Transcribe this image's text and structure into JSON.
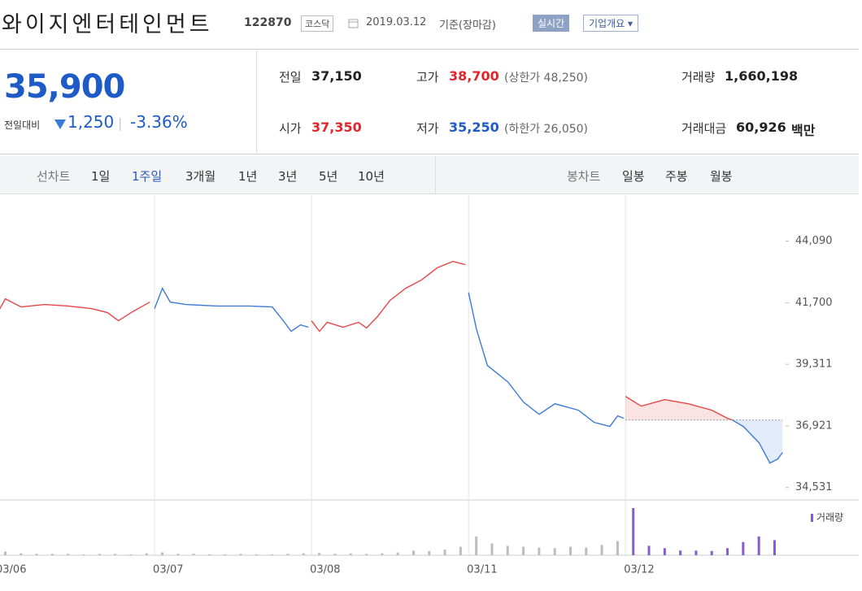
{
  "header": {
    "name": "와이지엔터테인먼트",
    "code": "122870",
    "market": "코스닥",
    "date": "2019.03.12",
    "basis": "기준(장마감)",
    "realtime": "실시간",
    "company": "기업개요"
  },
  "quote": {
    "price": "35,900",
    "change_label": "전일대비",
    "change": "1,250",
    "change_pct": "-3.36%",
    "items": [
      {
        "label": "전일",
        "value": "37,150",
        "color": "#222222"
      },
      {
        "label": "고가",
        "value": "38,700",
        "note": "(상한가 48,250)",
        "color": "#e0262b"
      },
      {
        "label": "거래량",
        "value": "1,660,198",
        "color": "#222222"
      },
      {
        "label": "시가",
        "value": "37,350",
        "color": "#e0262b"
      },
      {
        "label": "저가",
        "value": "35,250",
        "note": "(하한가 26,050)",
        "color": "#1f5bc6"
      },
      {
        "label": "거래대금",
        "value": "60,926",
        "unit": "백만",
        "color": "#222222"
      }
    ]
  },
  "tabs": {
    "line_label": "선차트",
    "line": [
      "1일",
      "1주일",
      "3개월",
      "1년",
      "3년",
      "5년",
      "10년"
    ],
    "active": 1,
    "candle_label": "봉차트",
    "candle": [
      "일봉",
      "주봉",
      "월봉"
    ]
  },
  "chart_data": {
    "type": "line",
    "xlim": [
      0,
      5.04
    ],
    "ylim": [
      34050,
      45400
    ],
    "xticks": [
      {
        "value": 0,
        "label": "03/06"
      },
      {
        "value": 1,
        "label": "03/07"
      },
      {
        "value": 2,
        "label": "03/08"
      },
      {
        "value": 3,
        "label": "03/11"
      },
      {
        "value": 4,
        "label": "03/12"
      }
    ],
    "yticks": [
      {
        "value": 44090,
        "label": "44,090"
      },
      {
        "value": 41700,
        "label": "41,700"
      },
      {
        "value": 39311,
        "label": "39,311"
      },
      {
        "value": 36921,
        "label": "36,921"
      },
      {
        "value": 34531,
        "label": "34,531"
      }
    ],
    "xgrid": true,
    "reference": 37150,
    "series": [
      {
        "color": "#e64545",
        "x": [
          0,
          0.05,
          0.15,
          0.3,
          0.45,
          0.6,
          0.7,
          0.77,
          0.85,
          0.97
        ],
        "values": [
          41315,
          41850,
          41535,
          41630,
          41570,
          41470,
          41315,
          41000,
          41315,
          41725
        ]
      },
      {
        "color": "#3d7ad6",
        "x": [
          1,
          1.05,
          1.1,
          1.2,
          1.4,
          1.6,
          1.75,
          1.82,
          1.87,
          1.93,
          1.98
        ],
        "values": [
          41470,
          42260,
          41725,
          41630,
          41570,
          41570,
          41535,
          41000,
          40590,
          40840,
          40750
        ]
      },
      {
        "color": "#e64545",
        "x": [
          2,
          2.05,
          2.1,
          2.2,
          2.3,
          2.35,
          2.42,
          2.5,
          2.6,
          2.7,
          2.8,
          2.9,
          2.98
        ],
        "values": [
          41000,
          40590,
          40940,
          40750,
          40940,
          40720,
          41160,
          41790,
          42260,
          42580,
          43050,
          43300,
          43175
        ]
      },
      {
        "color": "#3d7ad6",
        "x": [
          3,
          3.05,
          3.12,
          3.25,
          3.35,
          3.45,
          3.55,
          3.7,
          3.8,
          3.9,
          3.95,
          3.99
        ],
        "values": [
          42100,
          40685,
          39265,
          38630,
          37845,
          37370,
          37780,
          37530,
          37060,
          36900,
          37310,
          37215
        ]
      },
      {
        "color": "#e64545",
        "fill": true,
        "x": [
          4,
          4.1,
          4.25,
          4.4,
          4.55,
          4.65,
          4.68
        ],
        "values": [
          38065,
          37690,
          37940,
          37780,
          37530,
          37215,
          37150
        ]
      },
      {
        "color": "#3d7ad6",
        "fill": true,
        "x": [
          4.68,
          4.75,
          4.85,
          4.92,
          4.97,
          5
        ],
        "values": [
          37150,
          36900,
          36270,
          35480,
          35640,
          35890
        ]
      }
    ],
    "volume": {
      "ylim": [
        0,
        100
      ],
      "series": [
        {
          "color": "#bdbdbd",
          "x": [
            0,
            0.1,
            0.2,
            0.3,
            0.4,
            0.5,
            0.6,
            0.7,
            0.8,
            0.9,
            1,
            1.1,
            1.2,
            1.3,
            1.4,
            1.5,
            1.6,
            1.7,
            1.8,
            1.9,
            2,
            2.1,
            2.2,
            2.3,
            2.4,
            2.5,
            2.6,
            2.7,
            2.8,
            2.9,
            3,
            3.1,
            3.2,
            3.3,
            3.4,
            3.5,
            3.6,
            3.7,
            3.8,
            3.9
          ],
          "values": [
            8,
            4,
            3,
            3,
            3,
            2,
            3,
            3,
            2,
            4,
            6,
            3,
            3,
            2,
            2,
            3,
            2,
            2,
            3,
            4,
            5,
            3,
            4,
            3,
            4,
            6,
            10,
            9,
            12,
            18,
            40,
            25,
            20,
            18,
            16,
            15,
            18,
            16,
            22,
            30
          ]
        },
        {
          "name": "거래량",
          "color": "#8a5cc8",
          "x": [
            4,
            4.1,
            4.2,
            4.3,
            4.4,
            4.5,
            4.6,
            4.7,
            4.8,
            4.9
          ],
          "values": [
            100,
            20,
            15,
            10,
            10,
            9,
            15,
            28,
            40,
            32
          ]
        }
      ]
    }
  }
}
